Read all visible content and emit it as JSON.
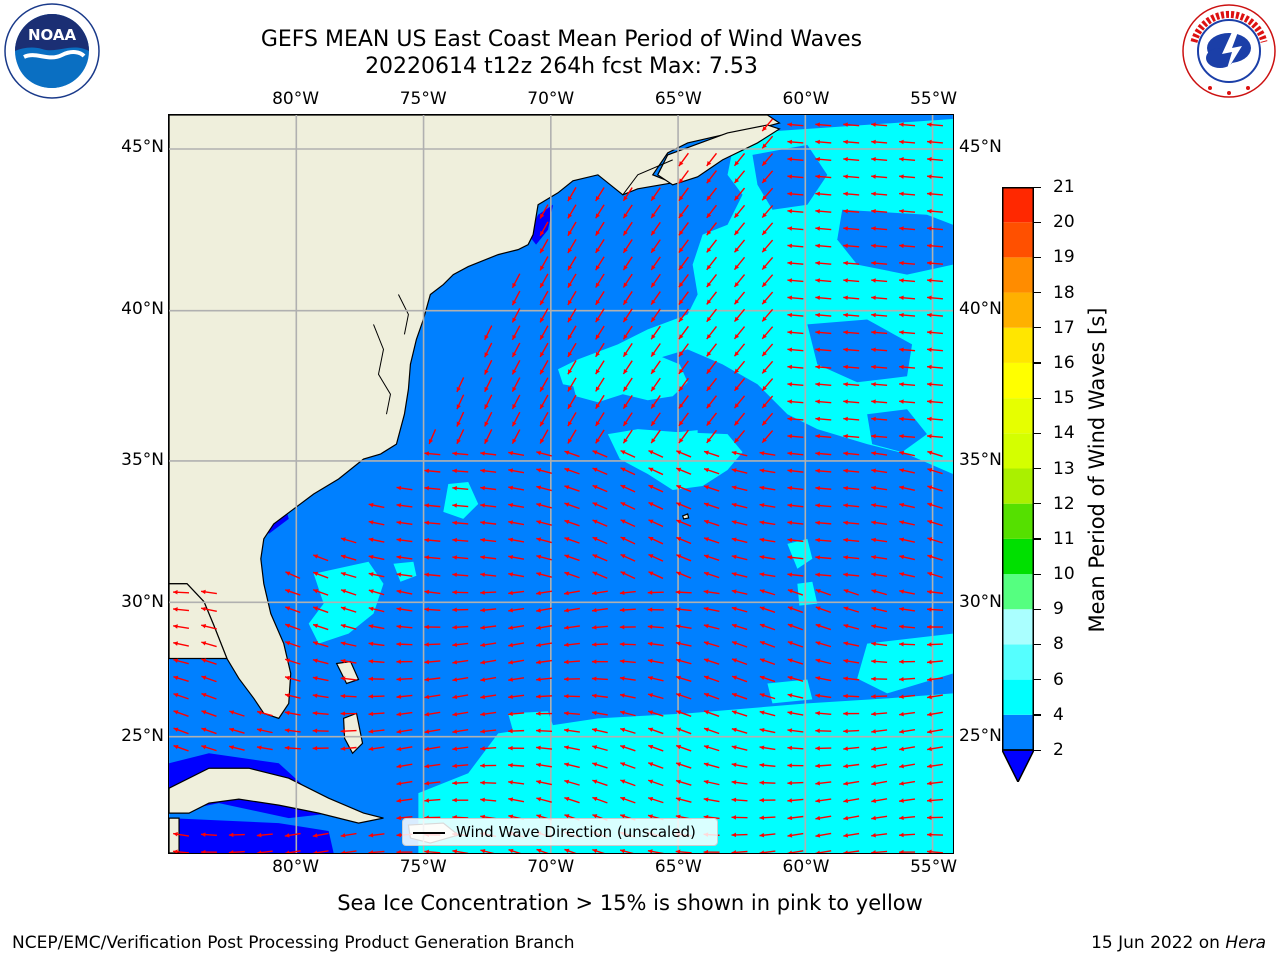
{
  "title": {
    "line1": "GEFS MEAN US East Coast Mean Period of Wind Waves",
    "line2": "20220614 t12z 264h fcst   Max: 7.53"
  },
  "map": {
    "lon_labels_top": [
      "80°W",
      "75°W",
      "70°W",
      "65°W",
      "60°W",
      "55°W"
    ],
    "lon_labels_bottom": [
      "80°W",
      "75°W",
      "70°W",
      "65°W",
      "60°W",
      "55°W"
    ],
    "lat_labels_left": [
      "45°N",
      "40°N",
      "35°N",
      "30°N",
      "25°N"
    ],
    "lat_labels_right": [
      "45°N",
      "40°N",
      "35°N",
      "30°N",
      "25°N"
    ],
    "lon_values": [
      -80,
      -75,
      -70,
      -65,
      -60,
      -55
    ],
    "lat_values": [
      45,
      40,
      35,
      30,
      25
    ],
    "extent": {
      "lon": [
        -85,
        -54.2
      ],
      "lat": [
        20.5,
        46
      ]
    },
    "colors": {
      "land": "#efefdc",
      "ocean_2_4": "#0080ff",
      "ocean_4_6": "#00ffff",
      "ocean_lt2": "#0000ff",
      "arrow": "#ff0000",
      "grid": "#b0b0b0"
    },
    "legend_label": "Wind Wave Direction (unscaled)"
  },
  "colorbar": {
    "title": "Mean Period of Wind Waves [s]",
    "ticks": [
      "2",
      "4",
      "6",
      "8",
      "9",
      "10",
      "11",
      "12",
      "13",
      "14",
      "15",
      "16",
      "17",
      "18",
      "19",
      "20",
      "21"
    ],
    "bounds": [
      2,
      4,
      6,
      8,
      9,
      10,
      11,
      12,
      13,
      14,
      15,
      16,
      17,
      18,
      19,
      20,
      21
    ],
    "colors": [
      "#0080ff",
      "#00ffff",
      "#55ffff",
      "#aaffff",
      "#55ff80",
      "#00e000",
      "#55e000",
      "#aaf000",
      "#d4ff00",
      "#e6ff00",
      "#ffff00",
      "#ffe600",
      "#ffb000",
      "#ff8c00",
      "#ff5000",
      "#ff2800",
      "#ff0000"
    ],
    "under_color": "#0000ff"
  },
  "note": "Sea Ice Concentration > 15% is shown in pink to yellow",
  "footer": {
    "credit": "NCEP/EMC/Verification Post Processing Product Generation Branch",
    "date_prefix": "15 Jun 2022 on ",
    "machine": "Hera"
  },
  "logos": {
    "left": "NOAA",
    "right": "NATIONAL WEATHER SERVICE"
  }
}
